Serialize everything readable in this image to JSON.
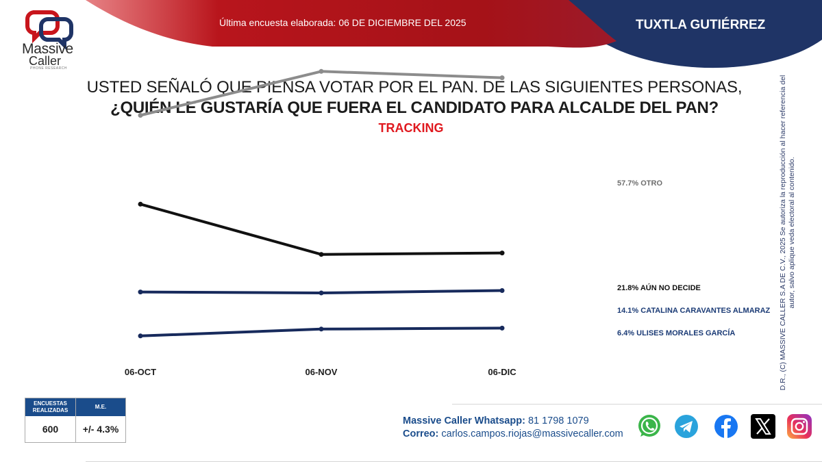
{
  "header": {
    "survey_date": "Última encuesta elaborada: 06 DE DICIEMBRE DEL 2025",
    "city": "TUXTLA GUTIÉRREZ",
    "colors": {
      "red": "#b8151c",
      "blue": "#1f3466"
    }
  },
  "logo": {
    "line1": "Massive",
    "line2": "Caller",
    "tagline": "PHONE RESEARCH"
  },
  "question": {
    "line1": "USTED SEÑALÓ QUE PIENSA VOTAR POR EL PAN. DE LAS SIGUIENTES PERSONAS,",
    "line2": "¿QUIÉN LE GUSTARÍA QUE FUERA EL CANDIDATO PARA ALCALDE DEL PAN?",
    "tracking": "TRACKING"
  },
  "chart_data": {
    "type": "line",
    "title": "TRACKING",
    "categories": [
      "06-OCT",
      "06-NOV",
      "06-DIC"
    ],
    "series": [
      {
        "name": "OTRO",
        "values": [
          50.0,
          59.0,
          57.7
        ],
        "color": "#8c8c8c",
        "label": "57.7% OTRO",
        "label_color": "#6e6e6e"
      },
      {
        "name": "AÚN NO DECIDE",
        "values": [
          31.8,
          21.5,
          21.8
        ],
        "color": "#111111",
        "label": "21.8% AÚN NO DECIDE",
        "label_color": "#111111"
      },
      {
        "name": "CATALINA CARAVANTES ALMARAZ",
        "values": [
          13.8,
          13.6,
          14.1
        ],
        "color": "#172a5c",
        "label": "14.1% CATALINA CARAVANTES ALMARAZ",
        "label_color": "#1a3a75"
      },
      {
        "name": "ULISES MORALES GARCÍA",
        "values": [
          4.8,
          6.2,
          6.4
        ],
        "color": "#172a5c",
        "label": "6.4% ULISES MORALES GARCÍA",
        "label_color": "#1a3a75"
      }
    ],
    "ylim": [
      0,
      65
    ],
    "grid": false,
    "legend": "right"
  },
  "sidebar_note": "D.R., (C) MASSIVE CALLER S.A DE C.V., 2025 Se autoriza la reproducción al hacer referencia del autor, salvo aplique veda electoral al contenido.",
  "margin_table": {
    "head1": "ENCUESTAS REALIZADAS",
    "head2": "M.E.",
    "surveys": "600",
    "margin": "+/- 4.3%"
  },
  "footer": {
    "whatsapp_label": "Massive Caller Whatsapp:",
    "whatsapp_number": "81 1798 1079",
    "email_label": "Correo:",
    "email": "carlos.campos.riojas@massivecaller.com"
  },
  "social_icons": [
    "whatsapp-icon",
    "telegram-icon",
    "facebook-icon",
    "x-icon",
    "instagram-icon"
  ]
}
